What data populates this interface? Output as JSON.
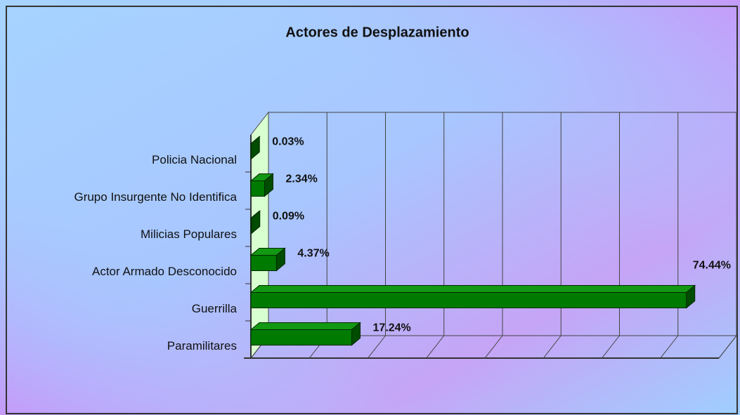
{
  "chart_data": {
    "type": "bar",
    "orientation": "horizontal",
    "title": "Actores de Desplazamiento",
    "categories": [
      "Policia Nacional",
      "Grupo Insurgente No Identifica",
      "Milicias Populares",
      "Actor Armado Desconocido",
      "Guerrilla",
      "Paramilitares"
    ],
    "values": [
      0.03,
      2.34,
      0.09,
      4.37,
      74.44,
      17.24
    ],
    "value_labels": [
      "0.03%",
      "2.34%",
      "0.09%",
      "4.37%",
      "74.44%",
      "17.24%"
    ],
    "color": "#007a00",
    "xlim": [
      0,
      80
    ],
    "xticks": [
      0,
      10,
      20,
      30,
      40,
      50,
      60,
      70,
      80
    ],
    "grid": true
  }
}
